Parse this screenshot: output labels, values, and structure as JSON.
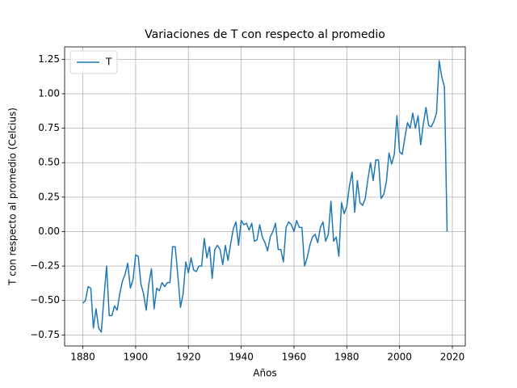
{
  "chart_data": {
    "type": "line",
    "title": "Variaciones de T con respecto al promedio",
    "xlabel": "Años",
    "ylabel": "T con respecto al promedio (Celcius)",
    "x": [
      1880,
      1881,
      1882,
      1883,
      1884,
      1885,
      1886,
      1887,
      1888,
      1889,
      1890,
      1891,
      1892,
      1893,
      1894,
      1895,
      1896,
      1897,
      1898,
      1899,
      1900,
      1901,
      1902,
      1903,
      1904,
      1905,
      1906,
      1907,
      1908,
      1909,
      1910,
      1911,
      1912,
      1913,
      1914,
      1915,
      1916,
      1917,
      1918,
      1919,
      1920,
      1921,
      1922,
      1923,
      1924,
      1925,
      1926,
      1927,
      1928,
      1929,
      1930,
      1931,
      1932,
      1933,
      1934,
      1935,
      1936,
      1937,
      1938,
      1939,
      1940,
      1941,
      1942,
      1943,
      1944,
      1945,
      1946,
      1947,
      1948,
      1949,
      1950,
      1951,
      1952,
      1953,
      1954,
      1955,
      1956,
      1957,
      1958,
      1959,
      1960,
      1961,
      1962,
      1963,
      1964,
      1965,
      1966,
      1967,
      1968,
      1969,
      1970,
      1971,
      1972,
      1973,
      1974,
      1975,
      1976,
      1977,
      1978,
      1979,
      1980,
      1981,
      1982,
      1983,
      1984,
      1985,
      1986,
      1987,
      1988,
      1989,
      1990,
      1991,
      1992,
      1993,
      1994,
      1995,
      1996,
      1997,
      1998,
      1999,
      2000,
      2001,
      2002,
      2003,
      2004,
      2005,
      2006,
      2007,
      2008,
      2009,
      2010,
      2011,
      2012,
      2013,
      2014,
      2015,
      2016,
      2017,
      2018
    ],
    "series": [
      {
        "name": "T",
        "color": "#1f77b4",
        "values": [
          -0.52,
          -0.5,
          -0.4,
          -0.41,
          -0.7,
          -0.56,
          -0.7,
          -0.73,
          -0.48,
          -0.25,
          -0.61,
          -0.61,
          -0.54,
          -0.57,
          -0.45,
          -0.36,
          -0.31,
          -0.23,
          -0.41,
          -0.35,
          -0.17,
          -0.18,
          -0.38,
          -0.45,
          -0.57,
          -0.38,
          -0.27,
          -0.56,
          -0.41,
          -0.43,
          -0.37,
          -0.4,
          -0.37,
          -0.37,
          -0.11,
          -0.11,
          -0.32,
          -0.55,
          -0.45,
          -0.22,
          -0.3,
          -0.19,
          -0.28,
          -0.29,
          -0.25,
          -0.25,
          -0.05,
          -0.19,
          -0.11,
          -0.34,
          -0.13,
          -0.1,
          -0.13,
          -0.24,
          -0.1,
          -0.21,
          -0.09,
          0.02,
          0.07,
          -0.1,
          0.08,
          0.05,
          0.06,
          0.01,
          0.06,
          -0.07,
          -0.06,
          0.05,
          -0.04,
          -0.08,
          -0.14,
          -0.04,
          0.0,
          0.06,
          -0.13,
          -0.13,
          -0.22,
          0.03,
          0.07,
          0.05,
          0.0,
          0.08,
          0.03,
          0.03,
          -0.25,
          -0.19,
          -0.1,
          -0.04,
          -0.02,
          -0.08,
          0.03,
          0.07,
          -0.07,
          -0.02,
          0.22,
          -0.07,
          -0.04,
          -0.18,
          0.21,
          0.13,
          0.18,
          0.33,
          0.43,
          0.14,
          0.37,
          0.21,
          0.19,
          0.24,
          0.38,
          0.5,
          0.37,
          0.52,
          0.52,
          0.24,
          0.27,
          0.36,
          0.57,
          0.49,
          0.56,
          0.84,
          0.58,
          0.56,
          0.68,
          0.79,
          0.75,
          0.86,
          0.75,
          0.84,
          0.63,
          0.78,
          0.9,
          0.77,
          0.76,
          0.8,
          0.86,
          1.24,
          1.12,
          1.05,
          0.0
        ]
      }
    ],
    "xlim": [
      1873.1,
      2024.9
    ],
    "ylim": [
      -0.83,
      1.34
    ],
    "xticks": [
      1880,
      1900,
      1920,
      1940,
      1960,
      1980,
      2000,
      2020
    ],
    "yticks": [
      {
        "value": -0.75,
        "label": "−0.75"
      },
      {
        "value": -0.5,
        "label": "−0.50"
      },
      {
        "value": -0.25,
        "label": "−0.25"
      },
      {
        "value": 0,
        "label": "0.00"
      },
      0.25,
      {
        "value": 0.5,
        "label": "0.50"
      },
      0.75,
      {
        "value": 1,
        "label": "1.00"
      },
      1.25
    ],
    "grid": true,
    "legend": "upper left"
  }
}
